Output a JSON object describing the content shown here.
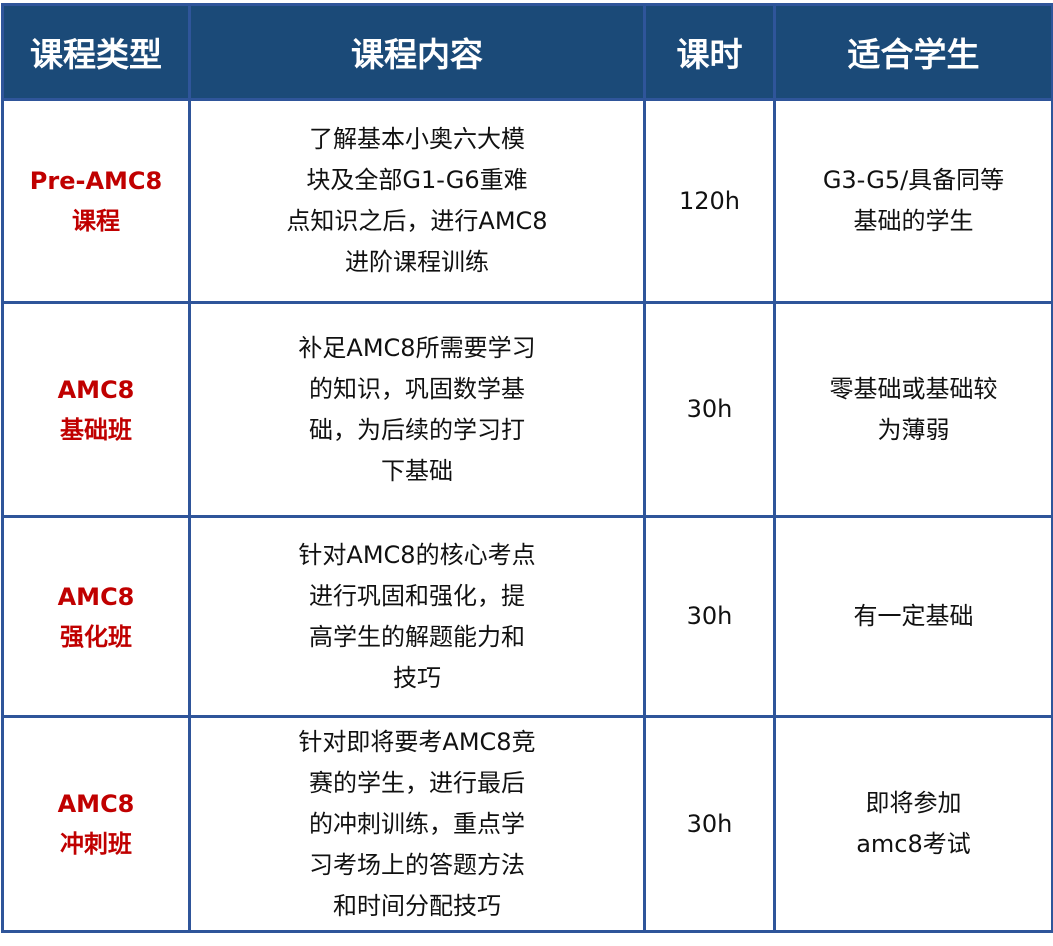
{
  "headers": [
    "课程类型",
    "课程内容",
    "课时",
    "适合学生"
  ],
  "colors": {
    "header_bg": "#1b4a78",
    "border": "#2f559a",
    "type_text": "#c00000"
  },
  "rows": [
    {
      "type": [
        "Pre-AMC8",
        "课程"
      ],
      "content": [
        "了解基本小奥六大模",
        "块及全部G1-G6重难",
        "点知识之后，进行AMC8",
        "进阶课程训练"
      ],
      "hours": "120h",
      "students": [
        "G3-G5/具备同等",
        "基础的学生"
      ]
    },
    {
      "type": [
        "AMC8",
        "基础班"
      ],
      "content": [
        "补足AMC8所需要学习",
        "的知识，巩固数学基",
        "础，为后续的学习打",
        "下基础"
      ],
      "hours": "30h",
      "students": [
        "零基础或基础较",
        "为薄弱"
      ]
    },
    {
      "type": [
        "AMC8",
        "强化班"
      ],
      "content": [
        "针对AMC8的核心考点",
        "进行巩固和强化，提",
        "高学生的解题能力和",
        "技巧"
      ],
      "hours": "30h",
      "students": [
        "有一定基础"
      ]
    },
    {
      "type": [
        "AMC8",
        "冲刺班"
      ],
      "content": [
        "针对即将要考AMC8竞",
        "赛的学生，进行最后",
        "的冲刺训练，重点学",
        "习考场上的答题方法",
        "和时间分配技巧"
      ],
      "hours": "30h",
      "students": [
        "即将参加",
        "amc8考试"
      ]
    }
  ]
}
